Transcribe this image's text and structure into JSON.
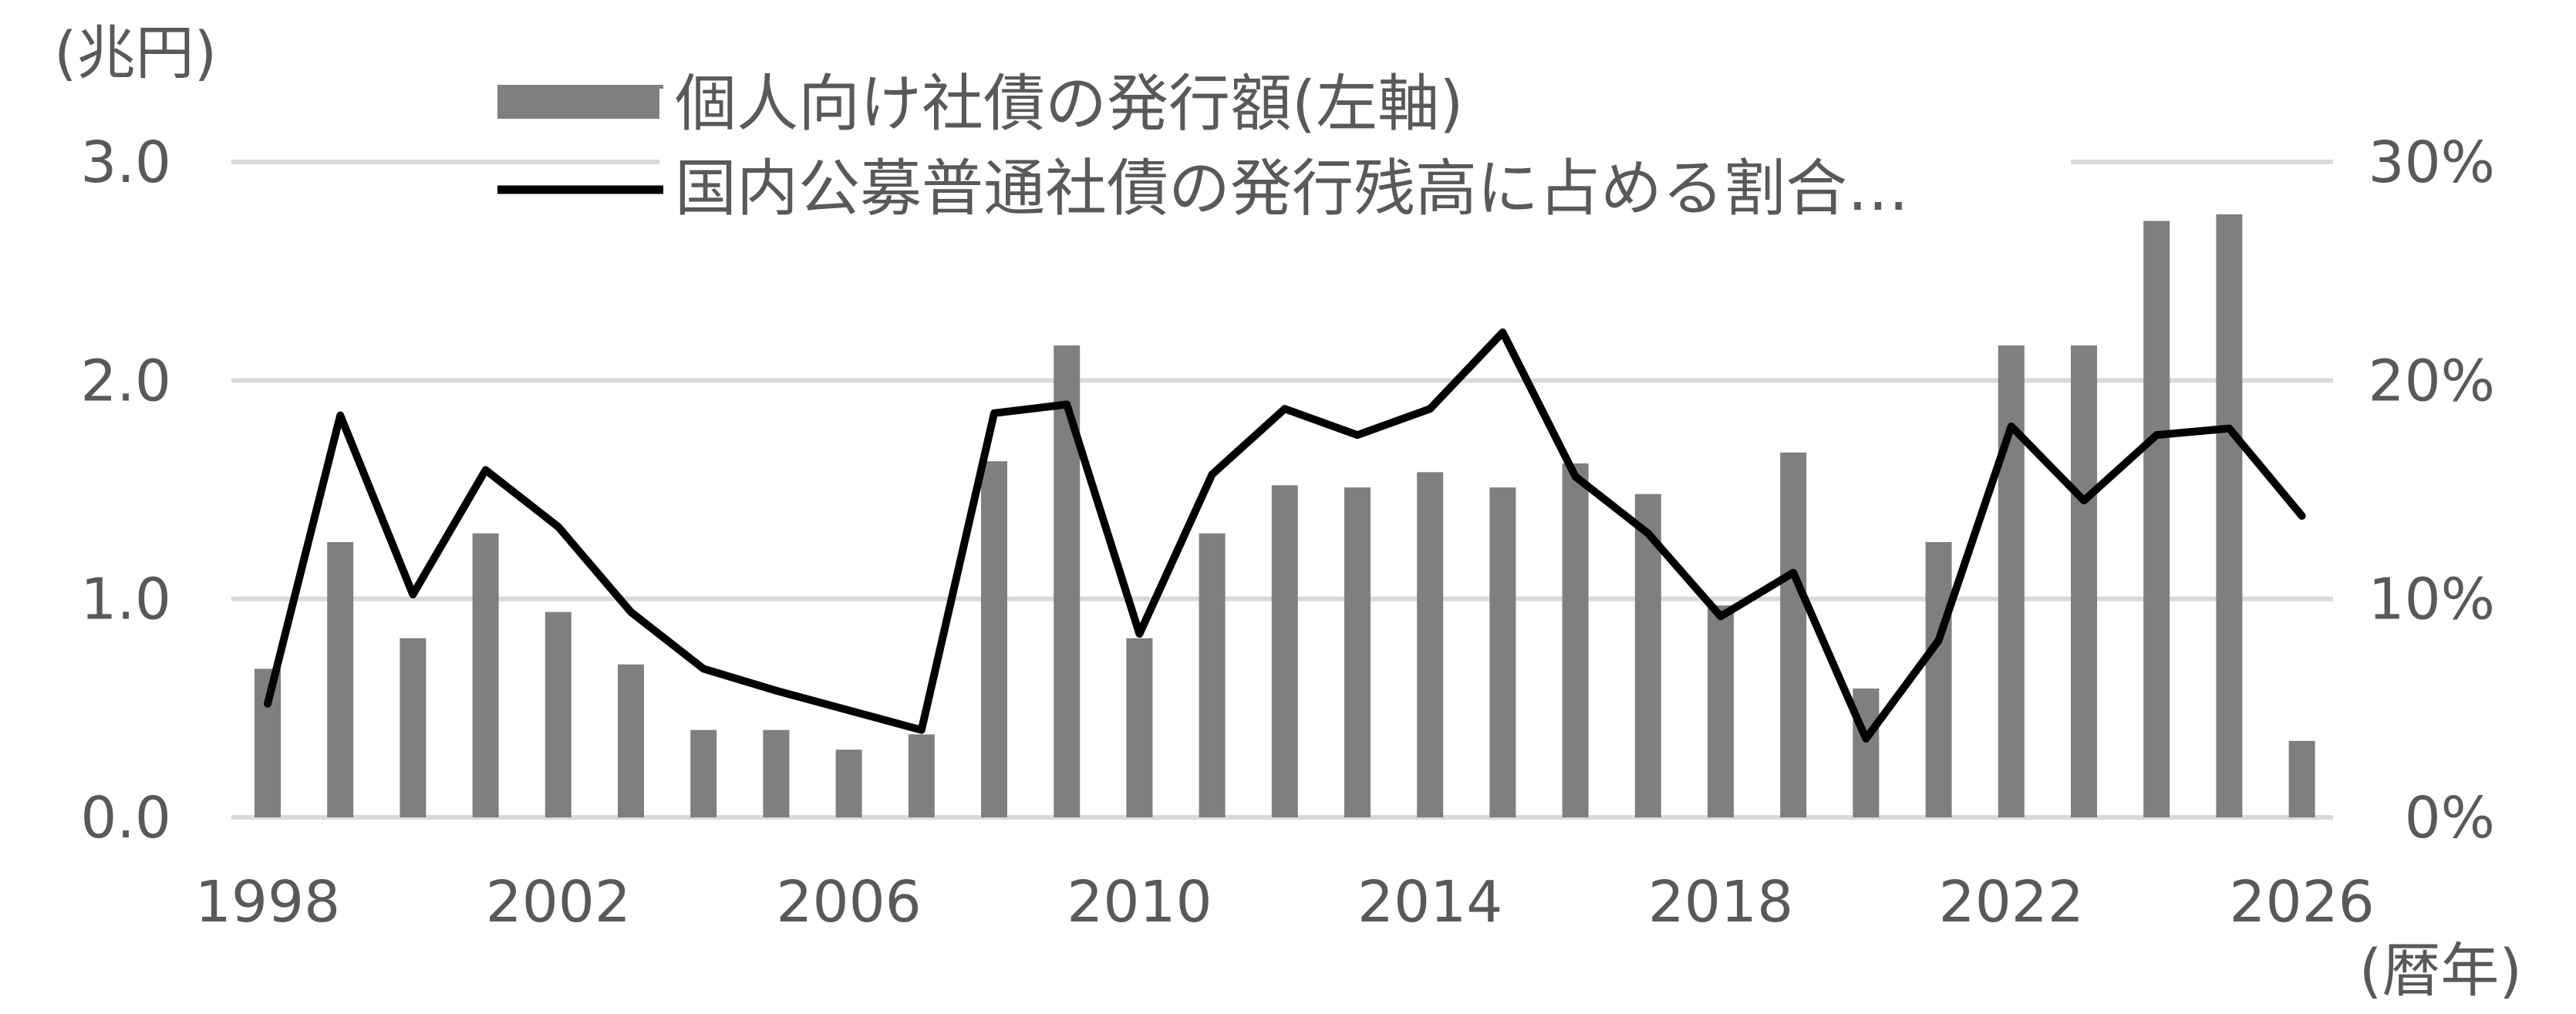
{
  "chart_data": {
    "type": "bar",
    "left_unit": "(兆円)",
    "x_unit": "(暦年)",
    "x": [
      1998,
      1999,
      2000,
      2001,
      2002,
      2003,
      2004,
      2005,
      2006,
      2007,
      2008,
      2009,
      2010,
      2011,
      2012,
      2013,
      2014,
      2015,
      2016,
      2017,
      2018,
      2019,
      2020,
      2021,
      2022,
      2023,
      2024,
      2025,
      2026
    ],
    "x_tick_labels": [
      "1998",
      "2002",
      "2006",
      "2010",
      "2014",
      "2018",
      "2022",
      "2026"
    ],
    "x_tick_values": [
      1998,
      2002,
      2006,
      2010,
      2014,
      2018,
      2022,
      2026
    ],
    "y_left_ticks": [
      "0.0",
      "1.0",
      "2.0",
      "3.0"
    ],
    "y_left_tick_values": [
      0,
      1,
      2,
      3
    ],
    "y_left_range": [
      0,
      3
    ],
    "y_right_ticks": [
      "0%",
      "10%",
      "20%",
      "30%"
    ],
    "y_right_tick_values": [
      0,
      10,
      20,
      30
    ],
    "y_right_range": [
      0,
      30
    ],
    "grid": true,
    "legend_position": "top",
    "series": [
      {
        "name": "個人向け社債の発行額(左軸)",
        "type": "bar",
        "axis": "left",
        "color": "#7f7f7f",
        "values": [
          0.68,
          1.26,
          0.82,
          1.3,
          0.94,
          0.7,
          0.4,
          0.4,
          0.31,
          0.38,
          1.63,
          2.16,
          0.82,
          1.3,
          1.52,
          1.51,
          1.58,
          1.51,
          1.62,
          1.48,
          0.97,
          1.67,
          0.59,
          1.26,
          2.16,
          2.16,
          2.73,
          2.76,
          0.35
        ]
      },
      {
        "name": "国内公募普通社債の発行残高に占める割合…",
        "type": "line",
        "axis": "right",
        "color": "#000000",
        "values": [
          5.2,
          18.4,
          10.2,
          15.9,
          13.3,
          9.4,
          6.8,
          5.8,
          4.9,
          4.0,
          18.5,
          18.9,
          8.4,
          15.7,
          18.7,
          17.5,
          18.7,
          22.2,
          15.6,
          13.0,
          9.2,
          11.2,
          3.6,
          8.1,
          17.9,
          14.5,
          17.5,
          17.8,
          13.8
        ]
      }
    ]
  }
}
